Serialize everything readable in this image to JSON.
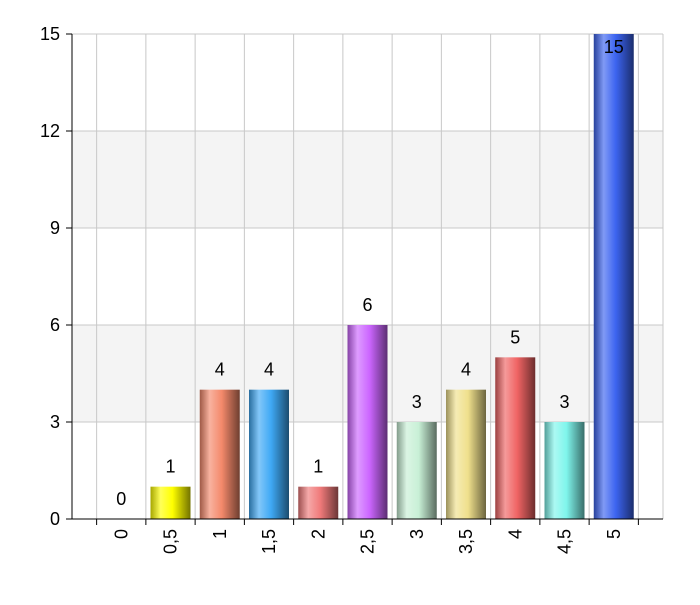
{
  "chart_data": {
    "type": "bar",
    "categories": [
      "0",
      "0,5",
      "1",
      "1,5",
      "2",
      "2,5",
      "3",
      "3,5",
      "4",
      "4,5",
      "5"
    ],
    "values": [
      0,
      1,
      4,
      4,
      1,
      6,
      3,
      4,
      5,
      3,
      15
    ],
    "data_labels": [
      "0",
      "1",
      "4",
      "4",
      "1",
      "6",
      "3",
      "4",
      "5",
      "3",
      "15"
    ],
    "y_ticks": [
      "0",
      "3",
      "6",
      "9",
      "12",
      "15"
    ],
    "ylim": [
      0,
      15
    ],
    "title": "",
    "xlabel": "",
    "ylabel": "",
    "grid": true,
    "legend": "none",
    "bar_colors": [
      "#ffff00",
      "#ffff00",
      "#f4896b",
      "#3fa9f5",
      "#f07a7a",
      "#cc66ff",
      "#c8f0d6",
      "#f0e08c",
      "#f06464",
      "#7ff5ec",
      "#3c64f0"
    ],
    "band_color": "#f4f4f4",
    "grid_color": "#c8c8c8"
  }
}
